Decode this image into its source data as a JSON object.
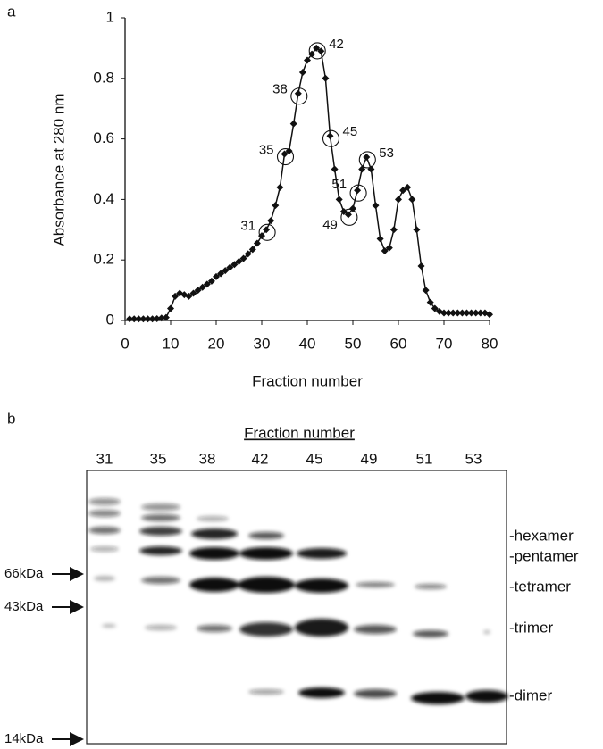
{
  "panel_labels": [
    "a",
    "b"
  ],
  "chart_data": {
    "type": "line",
    "title": null,
    "x_label": "Fraction number",
    "y_label": "Absorbance at 280 nm",
    "x": [
      1,
      2,
      3,
      4,
      5,
      6,
      7,
      8,
      9,
      10,
      11,
      12,
      13,
      14,
      15,
      16,
      17,
      18,
      19,
      20,
      21,
      22,
      23,
      24,
      25,
      26,
      27,
      28,
      29,
      30,
      31,
      32,
      33,
      34,
      35,
      36,
      37,
      38,
      39,
      40,
      41,
      42,
      43,
      44,
      45,
      46,
      47,
      48,
      49,
      50,
      51,
      52,
      53,
      54,
      55,
      56,
      57,
      58,
      59,
      60,
      61,
      62,
      63,
      64,
      65,
      66,
      67,
      68,
      69,
      70,
      71,
      72,
      73,
      74,
      75,
      76,
      77,
      78,
      79,
      80
    ],
    "series": [
      {
        "color": "#111111",
        "values": [
          0.005,
          0.005,
          0.005,
          0.005,
          0.005,
          0.005,
          0.006,
          0.008,
          0.01,
          0.04,
          0.08,
          0.09,
          0.085,
          0.08,
          0.09,
          0.1,
          0.11,
          0.12,
          0.13,
          0.145,
          0.155,
          0.165,
          0.175,
          0.185,
          0.195,
          0.205,
          0.22,
          0.235,
          0.255,
          0.28,
          0.3,
          0.33,
          0.38,
          0.44,
          0.55,
          0.56,
          0.65,
          0.75,
          0.82,
          0.86,
          0.88,
          0.9,
          0.89,
          0.8,
          0.61,
          0.5,
          0.4,
          0.36,
          0.35,
          0.37,
          0.43,
          0.5,
          0.54,
          0.5,
          0.38,
          0.27,
          0.23,
          0.24,
          0.3,
          0.4,
          0.43,
          0.44,
          0.4,
          0.3,
          0.18,
          0.1,
          0.06,
          0.04,
          0.03,
          0.025,
          0.025,
          0.025,
          0.025,
          0.025,
          0.025,
          0.025,
          0.025,
          0.025,
          0.025,
          0.02
        ]
      }
    ],
    "annotations": [
      {
        "text": "31",
        "x": 31,
        "y": 0.3
      },
      {
        "text": "35",
        "x": 35,
        "y": 0.55
      },
      {
        "text": "38",
        "x": 38,
        "y": 0.75
      },
      {
        "text": "42",
        "x": 42,
        "y": 0.9
      },
      {
        "text": "45",
        "x": 45,
        "y": 0.61
      },
      {
        "text": "49",
        "x": 49,
        "y": 0.35
      },
      {
        "text": "51",
        "x": 51,
        "y": 0.43
      },
      {
        "text": "53",
        "x": 53,
        "y": 0.54
      }
    ],
    "xlim": [
      0,
      80
    ],
    "xticks": [
      0,
      10,
      20,
      30,
      40,
      50,
      60,
      70,
      80
    ],
    "ylim": [
      0,
      1
    ],
    "yticks": [
      0,
      0.2,
      0.4,
      0.6,
      0.8,
      1
    ]
  },
  "gel": {
    "title": "Fraction number",
    "lanes": [
      "31",
      "35",
      "38",
      "42",
      "45",
      "49",
      "51",
      "53"
    ],
    "markers": [
      "66kDa",
      "43kDa",
      "14kDa"
    ],
    "bands": [
      "-hexamer",
      "-pentamer",
      "-tetramer",
      "-trimer",
      "-dimer"
    ]
  }
}
